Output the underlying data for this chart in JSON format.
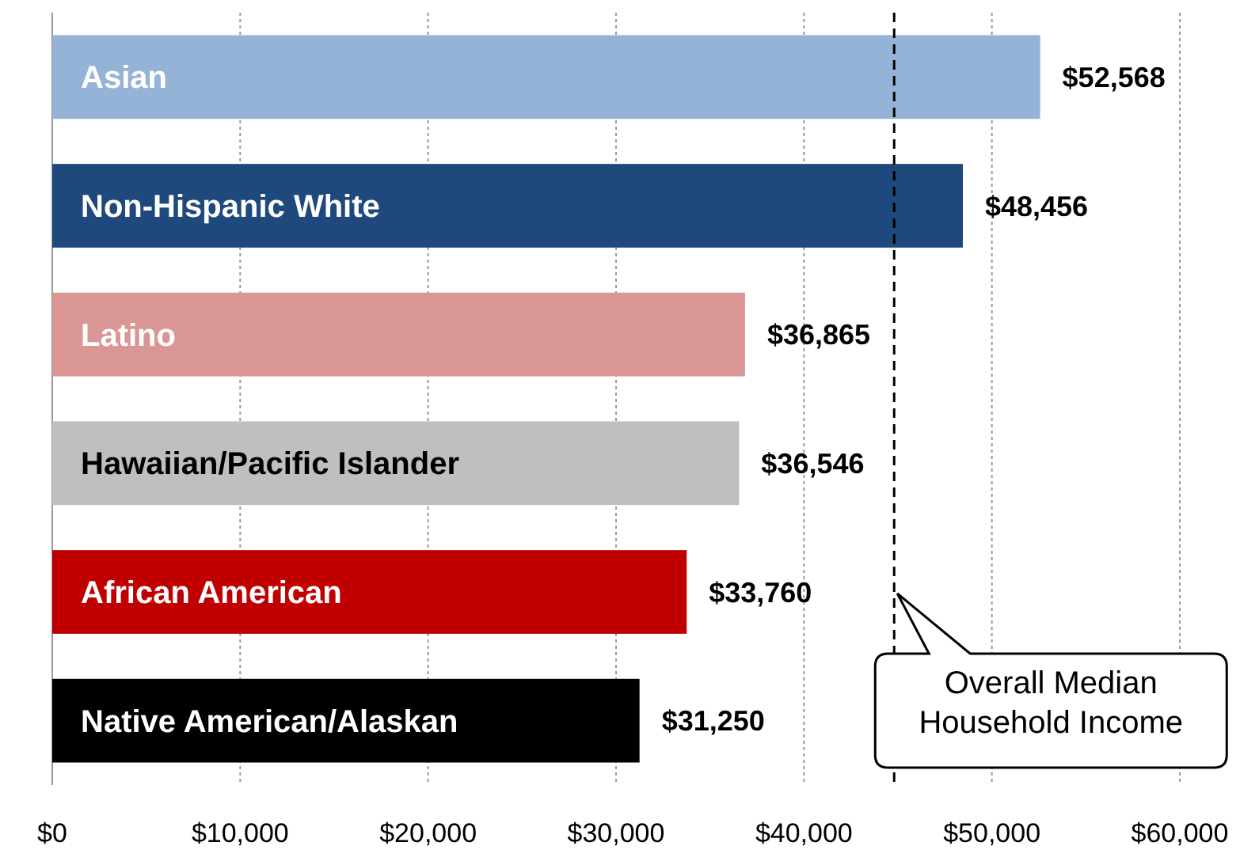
{
  "chart_data": {
    "type": "bar",
    "orientation": "horizontal",
    "categories": [
      "Asian",
      "Non-Hispanic White",
      "Latino",
      "Hawaiian/Pacific Islander",
      "African American",
      "Native American/Alaskan"
    ],
    "values": [
      52568,
      48456,
      36865,
      36546,
      33760,
      31250
    ],
    "colors": [
      "#95b3d7",
      "#1f497d",
      "#d99694",
      "#bfbfbf",
      "#c00000",
      "#000000"
    ],
    "value_labels": [
      "$52,568",
      "$48,456",
      "$36,865",
      "$36,546",
      "$33,760",
      "$31,250"
    ],
    "xlim": [
      0,
      60000
    ],
    "xticks": [
      {
        "value": 0,
        "label": "$0"
      },
      {
        "value": 10000,
        "label": "$10,000"
      },
      {
        "value": 20000,
        "label": "$20,000"
      },
      {
        "value": 30000,
        "label": "$30,000"
      },
      {
        "value": 40000,
        "label": "$40,000"
      },
      {
        "value": 50000,
        "label": "$50,000"
      },
      {
        "value": 60000,
        "label": "$60,000"
      }
    ],
    "grid": "x",
    "ref_lines": [
      {
        "axis": "x",
        "value": 44800,
        "label": "Overall Median Household Income",
        "color": "#000000",
        "line_style": "dashed"
      }
    ]
  }
}
